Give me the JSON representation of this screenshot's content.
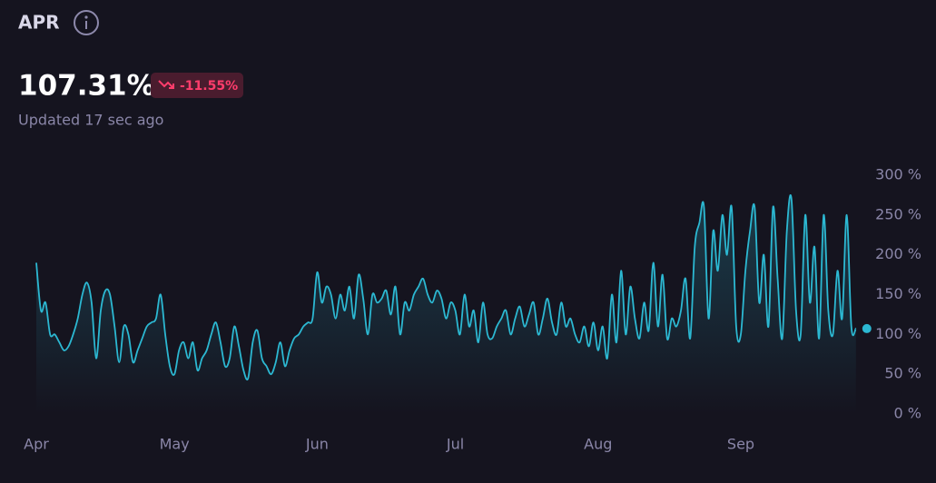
{
  "header": {
    "title": "APR",
    "value": "107.31%",
    "change": "-11.55%",
    "updated": "Updated 17 sec ago"
  },
  "chart_data": {
    "type": "line",
    "color": "#2cb8d2",
    "categories": [
      "Apr",
      null,
      null,
      null,
      null,
      null,
      null,
      null,
      null,
      null,
      null,
      null,
      null,
      null,
      null,
      null,
      null,
      null,
      null,
      null,
      null,
      null,
      null,
      null,
      null,
      null,
      null,
      null,
      null,
      null,
      "May",
      null,
      null,
      null,
      null,
      null,
      null,
      null,
      null,
      null,
      null,
      null,
      null,
      null,
      null,
      null,
      null,
      null,
      null,
      null,
      null,
      null,
      null,
      null,
      null,
      null,
      null,
      null,
      null,
      null,
      null,
      "Jun",
      null,
      null,
      null,
      null,
      null,
      null,
      null,
      null,
      null,
      null,
      null,
      null,
      null,
      null,
      null,
      null,
      null,
      null,
      null,
      null,
      null,
      null,
      null,
      null,
      null,
      null,
      null,
      null,
      null,
      "Jul",
      null,
      null,
      null,
      null,
      null,
      null,
      null,
      null,
      null,
      null,
      null,
      null,
      null,
      null,
      null,
      null,
      null,
      null,
      null,
      null,
      null,
      null,
      null,
      null,
      null,
      null,
      null,
      null,
      null,
      null,
      "Aug",
      null,
      null,
      null,
      null,
      null,
      null,
      null,
      null,
      null,
      null,
      null,
      null,
      null,
      null,
      null,
      null,
      null,
      null,
      null,
      null,
      null,
      null,
      null,
      null,
      null,
      null,
      null,
      null,
      null,
      null,
      "Sep",
      null,
      null,
      null,
      null,
      null,
      null,
      null,
      null,
      null,
      null,
      null,
      null,
      null,
      null,
      null,
      null,
      null,
      null,
      null,
      null,
      null,
      null,
      null,
      null,
      null
    ],
    "values": [
      190,
      130,
      140,
      100,
      100,
      90,
      80,
      85,
      100,
      120,
      150,
      165,
      140,
      70,
      130,
      155,
      150,
      110,
      65,
      110,
      100,
      65,
      80,
      95,
      110,
      115,
      120,
      150,
      100,
      60,
      50,
      80,
      90,
      70,
      90,
      55,
      70,
      80,
      100,
      115,
      90,
      60,
      70,
      110,
      85,
      55,
      45,
      90,
      105,
      70,
      60,
      50,
      65,
      90,
      60,
      80,
      95,
      100,
      110,
      115,
      120,
      178,
      140,
      160,
      150,
      120,
      150,
      130,
      160,
      120,
      175,
      145,
      100,
      150,
      140,
      145,
      155,
      125,
      160,
      100,
      140,
      130,
      150,
      160,
      170,
      150,
      140,
      155,
      145,
      120,
      140,
      130,
      100,
      150,
      110,
      130,
      90,
      140,
      100,
      95,
      110,
      120,
      130,
      100,
      120,
      135,
      110,
      125,
      140,
      100,
      120,
      145,
      115,
      100,
      140,
      110,
      120,
      100,
      90,
      110,
      85,
      115,
      80,
      110,
      70,
      150,
      90,
      180,
      100,
      160,
      120,
      95,
      140,
      105,
      190,
      110,
      175,
      95,
      120,
      110,
      130,
      170,
      95,
      210,
      240,
      260,
      120,
      230,
      180,
      250,
      200,
      260,
      110,
      100,
      180,
      230,
      260,
      140,
      200,
      110,
      260,
      170,
      95,
      230,
      270,
      130,
      100,
      250,
      140,
      210,
      95,
      250,
      130,
      100,
      180,
      120,
      250,
      110,
      107.31
    ],
    "ylim": [
      0,
      300
    ],
    "yticks": [
      {
        "value": 0,
        "label": "0 %"
      },
      {
        "value": 50,
        "label": "50 %"
      },
      {
        "value": 100,
        "label": "100 %"
      },
      {
        "value": 150,
        "label": "150 %"
      },
      {
        "value": 200,
        "label": "200 %"
      },
      {
        "value": 250,
        "label": "250 %"
      },
      {
        "value": 300,
        "label": "300 %"
      }
    ],
    "grid": false
  }
}
